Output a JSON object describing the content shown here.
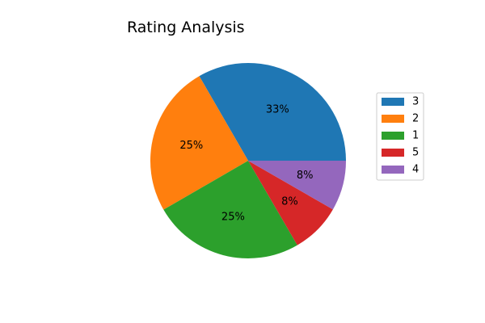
{
  "chart_data": {
    "type": "pie",
    "title": "Rating Analysis",
    "labels": [
      "3",
      "2",
      "1",
      "5",
      "4"
    ],
    "values": [
      33.3,
      25.0,
      25.0,
      8.3,
      8.3
    ],
    "pct_labels": [
      "33%",
      "25%",
      "25%",
      "8%",
      "8%"
    ],
    "colors": [
      "#1f77b4",
      "#ff7f0e",
      "#2ca02c",
      "#d62728",
      "#9467bd"
    ],
    "start_angle_deg": 0,
    "direction": "counterclockwise",
    "legend": {
      "placement": "right",
      "entries": [
        "3",
        "2",
        "1",
        "5",
        "4"
      ]
    }
  }
}
